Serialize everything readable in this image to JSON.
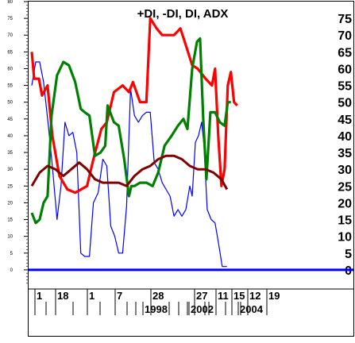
{
  "chart_data": {
    "type": "line",
    "title": "+DI, -DI, DI, ADX",
    "ylim": [
      -5,
      80
    ],
    "left_ticks": [
      0,
      5,
      10,
      15,
      20,
      25,
      30,
      35,
      40,
      45,
      50,
      55,
      60,
      65,
      70,
      75,
      80
    ],
    "right_ticks": [
      0,
      5,
      10,
      15,
      20,
      25,
      30,
      35,
      40,
      45,
      50,
      55,
      60,
      65,
      70,
      75
    ],
    "x_ticks_top": [
      "1",
      "18",
      "1",
      "7",
      "28",
      "27",
      "11",
      "15",
      "12",
      "19"
    ],
    "x_ticks_bottom": [
      "1998",
      "2002",
      "2004"
    ],
    "colors": {
      "red_series": "#ff0000",
      "green_series": "#008000",
      "blue_series": "#0000ff",
      "darkred_series": "#800000",
      "zero_line": "#0000ff"
    },
    "x": [
      0,
      1,
      2,
      3,
      4,
      5,
      6,
      7,
      8,
      9,
      10,
      11,
      12,
      13,
      14,
      15,
      16,
      17,
      18,
      19,
      20,
      21,
      22,
      23,
      24,
      25,
      26,
      27,
      28,
      29,
      30,
      31,
      32,
      33,
      34,
      35,
      36,
      37,
      38,
      39,
      40,
      41,
      42,
      43,
      44,
      45,
      46,
      47,
      48,
      49,
      50,
      51,
      52,
      53,
      54,
      55,
      56,
      57,
      58,
      59,
      60,
      61,
      62,
      63,
      64,
      65,
      66,
      67,
      68,
      69,
      70,
      71,
      72,
      73,
      74,
      75,
      76,
      77,
      78,
      79,
      80,
      81,
      82,
      83,
      84,
      85,
      86,
      87,
      88,
      89,
      90,
      91,
      92,
      93,
      94,
      95,
      96,
      97,
      98,
      99,
      100,
      101,
      102,
      103,
      104,
      105,
      106,
      107,
      108,
      109,
      110,
      111,
      112,
      113,
      114,
      115,
      116,
      117,
      118,
      119,
      120,
      121,
      122,
      123,
      124,
      125,
      126,
      127,
      128,
      129,
      130,
      131,
      132,
      133,
      134,
      135,
      136,
      137,
      138,
      139,
      140,
      141,
      142,
      143,
      144,
      145,
      146,
      147,
      148,
      149,
      150,
      151,
      152,
      153,
      154,
      155,
      156,
      157,
      158,
      159,
      160,
      161,
      162,
      163,
      164,
      165,
      166,
      167,
      168,
      169,
      170,
      171,
      172,
      173,
      174,
      175,
      176,
      177,
      178,
      179,
      180,
      181,
      182,
      183,
      184,
      185,
      186,
      187,
      188,
      189,
      190,
      191,
      192,
      193,
      194,
      195,
      196,
      197,
      198,
      199,
      200,
      201,
      202,
      203,
      204,
      205,
      206,
      207,
      208,
      209,
      210,
      211,
      212,
      213,
      214,
      215,
      216,
      217,
      218,
      219,
      220,
      221,
      222,
      223,
      224,
      225,
      226,
      227,
      228,
      229,
      230,
      231,
      232,
      233,
      234,
      235,
      236,
      237,
      238,
      239,
      240,
      241,
      242,
      243,
      244,
      245,
      246,
      247,
      248,
      249,
      250,
      251,
      252,
      253,
      254,
      255,
      256,
      257,
      258,
      259,
      260,
      261,
      262,
      263,
      264,
      265,
      266,
      267,
      268,
      269,
      270,
      271,
      272,
      273,
      274,
      275,
      276,
      277,
      278,
      279,
      280,
      281,
      282,
      283,
      284,
      285,
      286,
      287,
      288,
      289,
      290,
      291,
      292,
      293,
      294,
      295,
      296,
      297,
      298,
      299,
      300,
      301,
      302,
      303,
      304,
      305,
      306,
      307,
      308,
      309,
      310,
      311,
      312,
      313,
      314,
      315,
      316,
      317,
      318,
      319,
      320,
      321,
      322,
      323,
      324,
      325,
      326,
      327,
      328,
      329,
      330,
      331,
      332,
      333,
      334,
      335,
      336,
      337,
      338,
      339,
      340,
      341,
      342,
      343,
      344,
      345,
      346,
      347,
      348,
      349,
      350,
      351,
      352,
      353,
      354,
      355,
      356,
      357,
      358,
      359,
      360,
      361,
      362,
      363,
      364,
      365,
      366,
      367,
      368,
      369,
      370,
      371,
      372,
      373,
      374,
      375,
      376,
      377,
      378,
      379,
      380,
      381,
      382,
      383,
      384,
      385,
      386,
      387,
      388,
      389,
      390,
      391,
      392,
      393,
      394,
      395,
      396,
      397,
      398,
      399
    ],
    "series": [
      {
        "points": [
          [
            0,
            65
          ],
          [
            3,
            57
          ],
          [
            9,
            57
          ],
          [
            13,
            52
          ],
          [
            20,
            55
          ],
          [
            26,
            40
          ],
          [
            35,
            28
          ],
          [
            45,
            24
          ],
          [
            55,
            23
          ],
          [
            70,
            25
          ],
          [
            78,
            33
          ],
          [
            88,
            42
          ],
          [
            95,
            44
          ],
          [
            104,
            53
          ],
          [
            115,
            55
          ],
          [
            123,
            53
          ],
          [
            128,
            56
          ],
          [
            137,
            50
          ],
          [
            145,
            50
          ],
          [
            150,
            75
          ],
          [
            158,
            72
          ],
          [
            165,
            70
          ],
          [
            172,
            70
          ],
          [
            180,
            70
          ],
          [
            188,
            72
          ],
          [
            195,
            67
          ],
          [
            203,
            61
          ],
          [
            210,
            60
          ],
          [
            220,
            57
          ],
          [
            228,
            55
          ],
          [
            232,
            60
          ],
          [
            236,
            40
          ],
          [
            240,
            25
          ],
          [
            244,
            30
          ],
          [
            248,
            55
          ],
          [
            252,
            59
          ],
          [
            256,
            50
          ],
          [
            260,
            49
          ]
        ]
      },
      {
        "points": [
          [
            0,
            17
          ],
          [
            5,
            14
          ],
          [
            10,
            15
          ],
          [
            15,
            20
          ],
          [
            20,
            22
          ],
          [
            25,
            46
          ],
          [
            32,
            58
          ],
          [
            40,
            62
          ],
          [
            47,
            61
          ],
          [
            55,
            56
          ],
          [
            62,
            48
          ],
          [
            67,
            47
          ],
          [
            73,
            46
          ],
          [
            80,
            34
          ],
          [
            87,
            35
          ],
          [
            93,
            37
          ],
          [
            96,
            49
          ],
          [
            104,
            44
          ],
          [
            110,
            43
          ],
          [
            117,
            33
          ],
          [
            123,
            22
          ],
          [
            126,
            25
          ],
          [
            130,
            25
          ],
          [
            137,
            26
          ],
          [
            145,
            26
          ],
          [
            153,
            25
          ],
          [
            160,
            29
          ],
          [
            168,
            37
          ],
          [
            177,
            40
          ],
          [
            185,
            43
          ],
          [
            192,
            45
          ],
          [
            197,
            42
          ],
          [
            203,
            60
          ],
          [
            209,
            68
          ],
          [
            213,
            69
          ],
          [
            217,
            45
          ],
          [
            221,
            27
          ],
          [
            226,
            47
          ],
          [
            232,
            47
          ],
          [
            238,
            44
          ],
          [
            244,
            43
          ],
          [
            248,
            50
          ],
          [
            252,
            50
          ]
        ]
      },
      {
        "points": [
          [
            0,
            55
          ],
          [
            5,
            62
          ],
          [
            10,
            62
          ],
          [
            15,
            56
          ],
          [
            21,
            43
          ],
          [
            26,
            31
          ],
          [
            32,
            15
          ],
          [
            37,
            25
          ],
          [
            42,
            44
          ],
          [
            47,
            40
          ],
          [
            52,
            41
          ],
          [
            57,
            35
          ],
          [
            62,
            5
          ],
          [
            67,
            4
          ],
          [
            73,
            4
          ],
          [
            78,
            20
          ],
          [
            84,
            23
          ],
          [
            90,
            33
          ],
          [
            95,
            31
          ],
          [
            100,
            13
          ],
          [
            105,
            10
          ],
          [
            110,
            5
          ],
          [
            115,
            5
          ],
          [
            120,
            19
          ],
          [
            125,
            54
          ],
          [
            130,
            46
          ],
          [
            135,
            44
          ],
          [
            140,
            46
          ],
          [
            145,
            47
          ],
          [
            150,
            47
          ],
          [
            155,
            32
          ],
          [
            160,
            30
          ],
          [
            165,
            26
          ],
          [
            170,
            24
          ],
          [
            175,
            22
          ],
          [
            180,
            16
          ],
          [
            185,
            18
          ],
          [
            190,
            16
          ],
          [
            195,
            18
          ],
          [
            200,
            25
          ],
          [
            203,
            22
          ],
          [
            207,
            38
          ],
          [
            211,
            40
          ],
          [
            215,
            44
          ],
          [
            218,
            37
          ],
          [
            222,
            18
          ],
          [
            227,
            15
          ],
          [
            232,
            14
          ],
          [
            237,
            7
          ],
          [
            241,
            1
          ],
          [
            247,
            1
          ]
        ]
      },
      {
        "points": [
          [
            0,
            25
          ],
          [
            10,
            29
          ],
          [
            20,
            31
          ],
          [
            30,
            30
          ],
          [
            40,
            28
          ],
          [
            50,
            30
          ],
          [
            60,
            32
          ],
          [
            70,
            30
          ],
          [
            80,
            27
          ],
          [
            90,
            26
          ],
          [
            100,
            26
          ],
          [
            110,
            26
          ],
          [
            120,
            25
          ],
          [
            130,
            28
          ],
          [
            140,
            30
          ],
          [
            150,
            31
          ],
          [
            160,
            33
          ],
          [
            170,
            34
          ],
          [
            180,
            34
          ],
          [
            190,
            33
          ],
          [
            200,
            31
          ],
          [
            210,
            30
          ],
          [
            220,
            30
          ],
          [
            230,
            29
          ],
          [
            240,
            27
          ],
          [
            247,
            24
          ]
        ]
      }
    ]
  },
  "legend_tag": "+DI, -DI, DI, ADX"
}
